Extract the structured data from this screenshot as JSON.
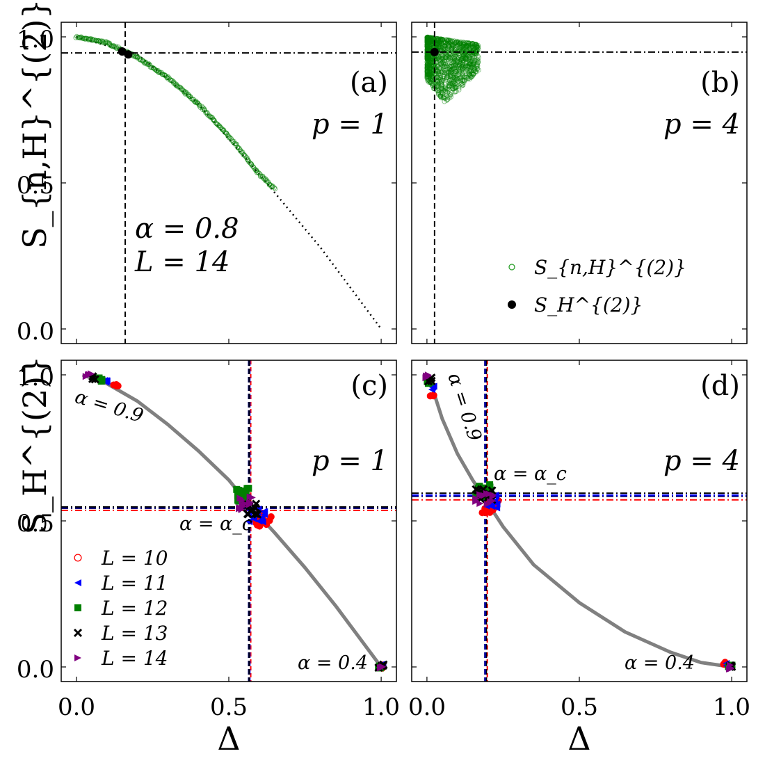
{
  "chart_data": [
    {
      "type": "scatter",
      "panel_label": "(a)",
      "p_label": "p = 1",
      "ylabel": "S_{n,H}^{(2)}",
      "xlabel": "",
      "xlim": [
        -0.05,
        1.05
      ],
      "ylim": [
        -0.05,
        1.05
      ],
      "annotations": [
        "α = 0.8",
        "L = 14"
      ],
      "ref_vline_x": 0.16,
      "ref_hline_y": 0.945,
      "dotted_line": {
        "x": [
          0.0,
          0.2,
          0.4,
          0.6,
          0.8,
          1.0
        ],
        "y": [
          1.0,
          0.94,
          0.77,
          0.53,
          0.28,
          0.0
        ]
      },
      "scatter_cloud": {
        "x": [
          0.0,
          0.1,
          0.2,
          0.3,
          0.4,
          0.5,
          0.6,
          0.65
        ],
        "y": [
          1.0,
          0.98,
          0.93,
          0.86,
          0.77,
          0.66,
          0.53,
          0.48
        ]
      },
      "highlight_points": [
        {
          "x": 0.15,
          "y": 0.95
        },
        {
          "x": 0.17,
          "y": 0.94
        }
      ]
    },
    {
      "type": "scatter",
      "panel_label": "(b)",
      "p_label": "p = 4",
      "xlabel": "",
      "ylabel": "",
      "xlim": [
        -0.05,
        1.05
      ],
      "ylim": [
        -0.05,
        1.05
      ],
      "ref_vline_x": 0.025,
      "ref_hline_y": 0.948,
      "cloud_region": {
        "x": [
          0.0,
          0.17
        ],
        "y": [
          0.78,
          1.0
        ]
      },
      "highlight_points": [
        {
          "x": 0.025,
          "y": 0.948
        }
      ],
      "legend": [
        {
          "label": "S_{n,H}^{(2)}",
          "marker": "open-circle",
          "color": "#2ca02c"
        },
        {
          "label": "S_H^{(2)}",
          "marker": "filled-circle",
          "color": "#000000"
        }
      ]
    },
    {
      "type": "scatter",
      "panel_label": "(c)",
      "p_label": "p = 1",
      "ylabel": "S_H^{(2)}",
      "xlabel": "Δ",
      "xlim": [
        -0.05,
        1.05
      ],
      "ylim": [
        -0.05,
        1.05
      ],
      "annotations": [
        "α = 0.9",
        "α = α_c",
        "α = 0.4"
      ],
      "crit_vlines_x": [
        0.572,
        0.565,
        0.569,
        0.567
      ],
      "crit_hlines_y": [
        0.536,
        0.547,
        0.543,
        0.548
      ],
      "gray_curve": {
        "x": [
          0.02,
          0.1,
          0.2,
          0.3,
          0.4,
          0.5,
          0.57,
          0.65,
          0.75,
          0.85,
          0.95,
          1.0
        ],
        "y": [
          1.0,
          0.97,
          0.91,
          0.83,
          0.74,
          0.64,
          0.55,
          0.46,
          0.34,
          0.21,
          0.07,
          0.0
        ]
      },
      "series": [
        {
          "name": "L = 10",
          "marker": "circle",
          "color": "#ff0000",
          "points": [
            {
              "x": 0.13,
              "y": 0.965
            },
            {
              "x": 0.61,
              "y": 0.505
            },
            {
              "x": 1.0,
              "y": 0.0
            }
          ]
        },
        {
          "name": "L = 11",
          "marker": "triangle-left",
          "color": "#0000ff",
          "points": [
            {
              "x": 0.1,
              "y": 0.975
            },
            {
              "x": 0.59,
              "y": 0.52
            },
            {
              "x": 0.998,
              "y": 0.003
            }
          ]
        },
        {
          "name": "L = 12",
          "marker": "square",
          "color": "#008000",
          "points": [
            {
              "x": 0.08,
              "y": 0.983
            },
            {
              "x": 0.54,
              "y": 0.59
            },
            {
              "x": 0.997,
              "y": 0.002
            }
          ]
        },
        {
          "name": "L = 13",
          "marker": "x",
          "color": "#000000",
          "points": [
            {
              "x": 0.06,
              "y": 0.99
            },
            {
              "x": 0.57,
              "y": 0.545
            },
            {
              "x": 0.999,
              "y": 0.001
            }
          ]
        },
        {
          "name": "L = 14",
          "marker": "triangle-right",
          "color": "#800080",
          "points": [
            {
              "x": 0.04,
              "y": 0.997
            },
            {
              "x": 0.56,
              "y": 0.56
            },
            {
              "x": 1.0,
              "y": 0.0
            }
          ]
        }
      ],
      "legend": [
        "L = 10",
        "L = 11",
        "L = 12",
        "L = 13",
        "L = 14"
      ]
    },
    {
      "type": "scatter",
      "panel_label": "(d)",
      "p_label": "p = 4",
      "xlabel": "Δ",
      "ylabel": "",
      "xlim": [
        -0.05,
        1.05
      ],
      "ylim": [
        -0.05,
        1.05
      ],
      "annotations": [
        "α = 0.9",
        "α = α_c",
        "α = 0.4"
      ],
      "crit_vlines_x": [
        0.198,
        0.19,
        0.192,
        0.195
      ],
      "crit_hlines_y": [
        0.572,
        0.588,
        0.584,
        0.595
      ],
      "gray_curve": {
        "x": [
          0.01,
          0.05,
          0.1,
          0.15,
          0.2,
          0.25,
          0.35,
          0.5,
          0.65,
          0.8,
          0.9,
          1.0
        ],
        "y": [
          0.98,
          0.85,
          0.73,
          0.64,
          0.56,
          0.48,
          0.35,
          0.22,
          0.12,
          0.05,
          0.015,
          0.0
        ]
      },
      "series": [
        {
          "name": "L = 10",
          "marker": "circle",
          "color": "#ff0000",
          "points": [
            {
              "x": 0.02,
              "y": 0.925
            },
            {
              "x": 0.21,
              "y": 0.55
            },
            {
              "x": 0.98,
              "y": 0.01
            }
          ]
        },
        {
          "name": "L = 11",
          "marker": "triangle-left",
          "color": "#0000ff",
          "points": [
            {
              "x": 0.015,
              "y": 0.955
            },
            {
              "x": 0.2,
              "y": 0.565
            },
            {
              "x": 0.99,
              "y": 0.005
            }
          ]
        },
        {
          "name": "L = 12",
          "marker": "square",
          "color": "#008000",
          "points": [
            {
              "x": 0.01,
              "y": 0.975
            },
            {
              "x": 0.18,
              "y": 0.6
            },
            {
              "x": 0.995,
              "y": 0.003
            }
          ]
        },
        {
          "name": "L = 13",
          "marker": "x",
          "color": "#000000",
          "points": [
            {
              "x": 0.008,
              "y": 0.985
            },
            {
              "x": 0.19,
              "y": 0.585
            },
            {
              "x": 0.997,
              "y": 0.002
            }
          ]
        },
        {
          "name": "L = 14",
          "marker": "triangle-right",
          "color": "#800080",
          "points": [
            {
              "x": 0.005,
              "y": 0.995
            },
            {
              "x": 0.19,
              "y": 0.58
            },
            {
              "x": 1.0,
              "y": 0.0
            }
          ]
        }
      ]
    }
  ],
  "ticks": {
    "x": [
      "0.0",
      "0.5",
      "1.0"
    ],
    "y": [
      "0.0",
      "0.5",
      "1.0"
    ]
  },
  "colors": {
    "cloud": "#008000",
    "curve": "#808080",
    "red": "#ff0000",
    "blue": "#0000ff",
    "navy": "#000080"
  }
}
